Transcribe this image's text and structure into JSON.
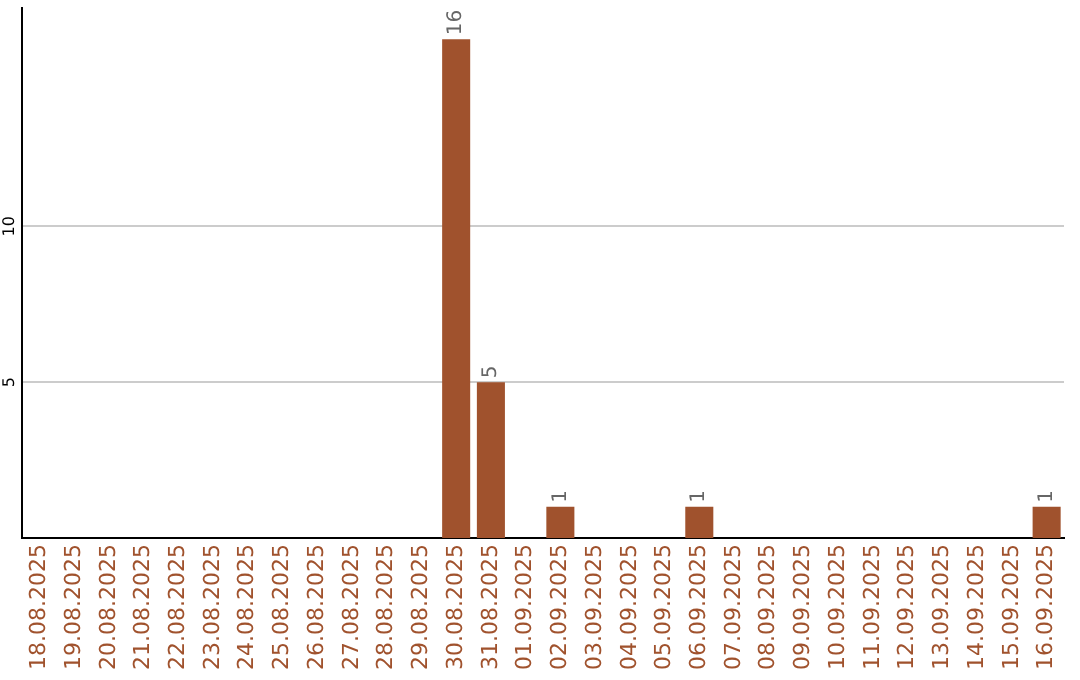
{
  "chart_data": {
    "type": "bar",
    "categories": [
      "18.08.2025",
      "19.08.2025",
      "20.08.2025",
      "21.08.2025",
      "22.08.2025",
      "23.08.2025",
      "24.08.2025",
      "25.08.2025",
      "26.08.2025",
      "27.08.2025",
      "28.08.2025",
      "29.08.2025",
      "30.08.2025",
      "31.08.2025",
      "01.09.2025",
      "02.09.2025",
      "03.09.2025",
      "04.09.2025",
      "05.09.2025",
      "06.09.2025",
      "07.09.2025",
      "08.09.2025",
      "09.09.2025",
      "10.09.2025",
      "11.09.2025",
      "12.09.2025",
      "13.09.2025",
      "14.09.2025",
      "15.09.2025",
      "16.09.2025"
    ],
    "values": [
      0,
      0,
      0,
      0,
      0,
      0,
      0,
      0,
      0,
      0,
      0,
      0,
      16,
      5,
      0,
      1,
      0,
      0,
      0,
      1,
      0,
      0,
      0,
      0,
      0,
      0,
      0,
      0,
      0,
      1
    ],
    "value_labels": [
      null,
      null,
      null,
      null,
      null,
      null,
      null,
      null,
      null,
      null,
      null,
      null,
      "16",
      "5",
      null,
      "1",
      null,
      null,
      null,
      "1",
      null,
      null,
      null,
      null,
      null,
      null,
      null,
      null,
      null,
      "1"
    ],
    "color": "#a0522d",
    "ylim": [
      0,
      17
    ],
    "yticks": [
      5,
      10
    ],
    "grid": "y",
    "legend": false
  }
}
